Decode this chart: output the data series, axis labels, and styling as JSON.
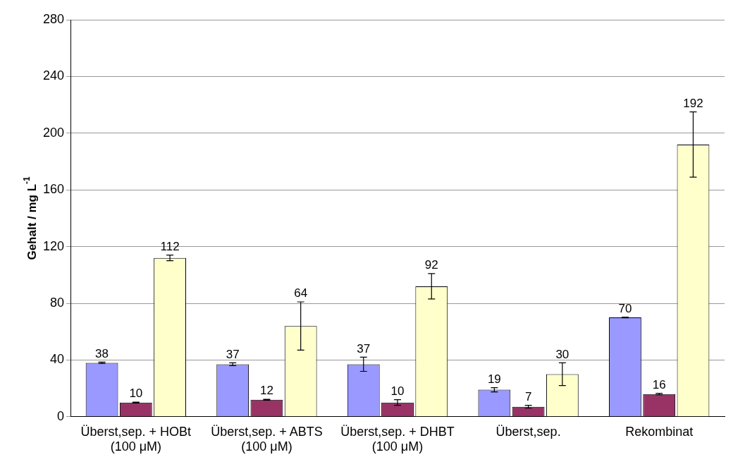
{
  "chart_data": {
    "type": "bar",
    "ylabel": "Gehalt / mg L$^{-1}$",
    "categories": [
      "Überst,sep. + HOBt (100 μM)",
      "Überst,sep. + ABTS (100 μM)",
      "Überst,sep. + DHBT (100 μM)",
      "Überst,sep.",
      "Rekombinat"
    ],
    "series": [
      {
        "color": "#9999ff",
        "values": [
          38,
          37,
          37,
          19,
          70
        ],
        "errors": [
          0.5,
          1,
          5,
          1.5,
          0.3
        ]
      },
      {
        "color": "#993366",
        "values": [
          10,
          12,
          10,
          7,
          16
        ],
        "errors": [
          0.3,
          0.3,
          2,
          1,
          0.5
        ]
      },
      {
        "color": "#ffffcc",
        "values": [
          112,
          64,
          92,
          30,
          192
        ],
        "errors": [
          2,
          17,
          9,
          8,
          23
        ]
      }
    ],
    "ylim": [
      0,
      280
    ],
    "yticks": [
      0,
      40,
      80,
      120,
      160,
      200,
      240,
      280
    ],
    "grid": "y",
    "data_labels": true,
    "legend": false
  }
}
